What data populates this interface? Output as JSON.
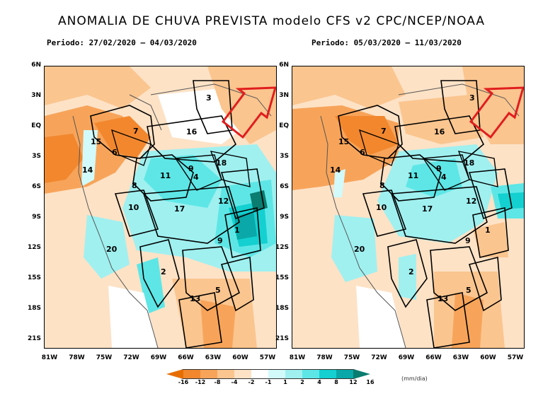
{
  "title": "ANOMALIA DE CHUVA PREVISTA modelo CFS v2 CPC/NCEP/NOAA",
  "panels": [
    {
      "period": "Periodo: 27/02/2020 – 04/03/2020"
    },
    {
      "period": "Periodo: 05/03/2020 – 11/03/2020"
    }
  ],
  "lat_ticks": [
    "6N",
    "3N",
    "EQ",
    "3S",
    "6S",
    "9S",
    "12S",
    "15S",
    "18S",
    "21S"
  ],
  "lon_ticks": [
    "81W",
    "78W",
    "75W",
    "72W",
    "69W",
    "66W",
    "63W",
    "60W",
    "57W"
  ],
  "basin_labels": [
    "3",
    "16",
    "7",
    "15",
    "6",
    "14",
    "11",
    "9",
    "4",
    "18",
    "8",
    "12",
    "10",
    "17",
    "1",
    "9",
    "20",
    "2",
    "5",
    "13"
  ],
  "colorbar": {
    "ticks": [
      "-16",
      "-12",
      "-8",
      "-4",
      "-2",
      "-1",
      "1",
      "2",
      "4",
      "8",
      "12",
      "16"
    ],
    "units": "(mm/dia)",
    "colors": [
      "#e66d00",
      "#f2872e",
      "#f7a45a",
      "#fbc58f",
      "#fde2c6",
      "#ffffff",
      "#d2fafa",
      "#a0f0f0",
      "#5ee6e6",
      "#14d0d0",
      "#0aa8a8",
      "#0a7c70"
    ]
  },
  "annotation": "red arrow pointing to basin 3"
}
